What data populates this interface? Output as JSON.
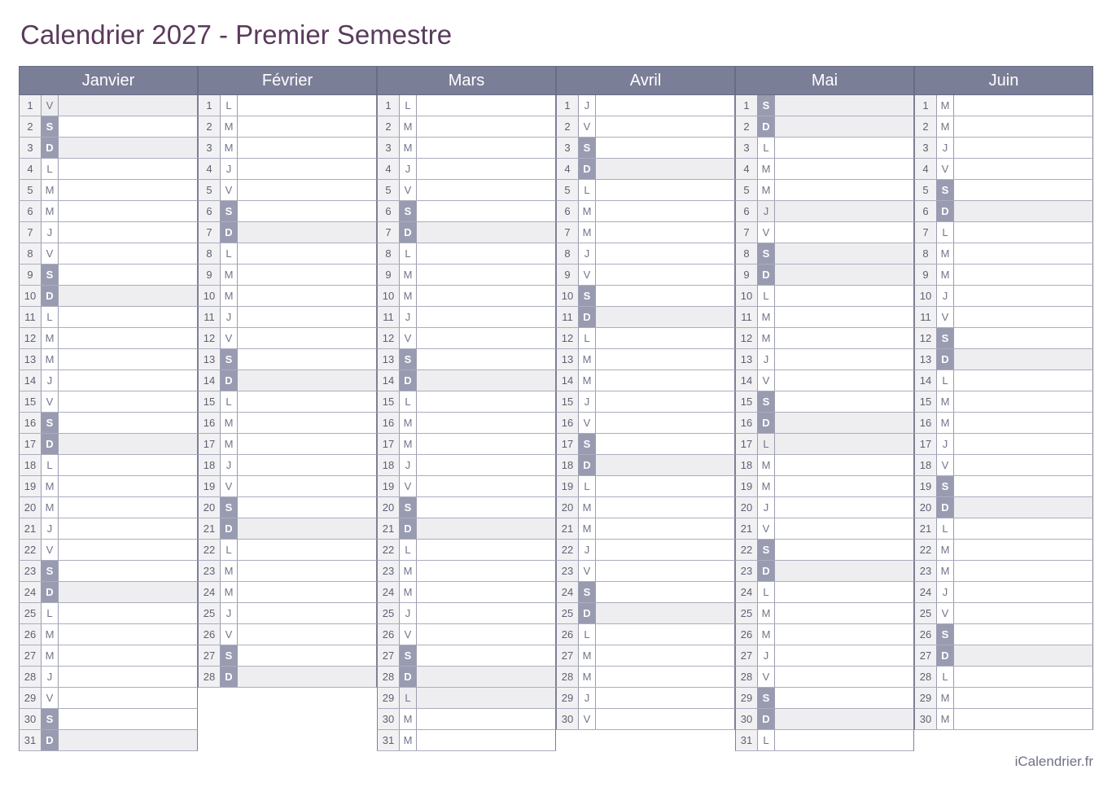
{
  "title": "Calendrier 2027 - Premier Semestre",
  "footer": "iCalendrier.fr",
  "colors": {
    "title": "#5a3a5c",
    "header_bg": "#7b7e97",
    "header_text": "#ffffff",
    "header_border": "#686b84",
    "weekend_bg": "#999bb1",
    "weekend_text": "#ffffff",
    "daynum_bg": "#f1f1f3",
    "daynum_text": "#5e6073",
    "letter_text": "#72748b",
    "shaded_bg": "#eeeef1",
    "row_border": "#abadbe",
    "inner_border": "#9b9db0",
    "column_border": "#7d7f96",
    "footer_text": "#6f7189",
    "page_bg": "#ffffff"
  },
  "months": [
    {
      "name": "Janvier",
      "days": [
        {
          "n": 1,
          "l": "V",
          "s": 1
        },
        {
          "n": 2,
          "l": "S",
          "s": 0
        },
        {
          "n": 3,
          "l": "D",
          "s": 1
        },
        {
          "n": 4,
          "l": "L",
          "s": 0
        },
        {
          "n": 5,
          "l": "M",
          "s": 0
        },
        {
          "n": 6,
          "l": "M",
          "s": 0
        },
        {
          "n": 7,
          "l": "J",
          "s": 0
        },
        {
          "n": 8,
          "l": "V",
          "s": 0
        },
        {
          "n": 9,
          "l": "S",
          "s": 0
        },
        {
          "n": 10,
          "l": "D",
          "s": 1
        },
        {
          "n": 11,
          "l": "L",
          "s": 0
        },
        {
          "n": 12,
          "l": "M",
          "s": 0
        },
        {
          "n": 13,
          "l": "M",
          "s": 0
        },
        {
          "n": 14,
          "l": "J",
          "s": 0
        },
        {
          "n": 15,
          "l": "V",
          "s": 0
        },
        {
          "n": 16,
          "l": "S",
          "s": 0
        },
        {
          "n": 17,
          "l": "D",
          "s": 1
        },
        {
          "n": 18,
          "l": "L",
          "s": 0
        },
        {
          "n": 19,
          "l": "M",
          "s": 0
        },
        {
          "n": 20,
          "l": "M",
          "s": 0
        },
        {
          "n": 21,
          "l": "J",
          "s": 0
        },
        {
          "n": 22,
          "l": "V",
          "s": 0
        },
        {
          "n": 23,
          "l": "S",
          "s": 0
        },
        {
          "n": 24,
          "l": "D",
          "s": 1
        },
        {
          "n": 25,
          "l": "L",
          "s": 0
        },
        {
          "n": 26,
          "l": "M",
          "s": 0
        },
        {
          "n": 27,
          "l": "M",
          "s": 0
        },
        {
          "n": 28,
          "l": "J",
          "s": 0
        },
        {
          "n": 29,
          "l": "V",
          "s": 0
        },
        {
          "n": 30,
          "l": "S",
          "s": 0
        },
        {
          "n": 31,
          "l": "D",
          "s": 1
        }
      ]
    },
    {
      "name": "Février",
      "days": [
        {
          "n": 1,
          "l": "L",
          "s": 0
        },
        {
          "n": 2,
          "l": "M",
          "s": 0
        },
        {
          "n": 3,
          "l": "M",
          "s": 0
        },
        {
          "n": 4,
          "l": "J",
          "s": 0
        },
        {
          "n": 5,
          "l": "V",
          "s": 0
        },
        {
          "n": 6,
          "l": "S",
          "s": 0
        },
        {
          "n": 7,
          "l": "D",
          "s": 1
        },
        {
          "n": 8,
          "l": "L",
          "s": 0
        },
        {
          "n": 9,
          "l": "M",
          "s": 0
        },
        {
          "n": 10,
          "l": "M",
          "s": 0
        },
        {
          "n": 11,
          "l": "J",
          "s": 0
        },
        {
          "n": 12,
          "l": "V",
          "s": 0
        },
        {
          "n": 13,
          "l": "S",
          "s": 0
        },
        {
          "n": 14,
          "l": "D",
          "s": 1
        },
        {
          "n": 15,
          "l": "L",
          "s": 0
        },
        {
          "n": 16,
          "l": "M",
          "s": 0
        },
        {
          "n": 17,
          "l": "M",
          "s": 0
        },
        {
          "n": 18,
          "l": "J",
          "s": 0
        },
        {
          "n": 19,
          "l": "V",
          "s": 0
        },
        {
          "n": 20,
          "l": "S",
          "s": 0
        },
        {
          "n": 21,
          "l": "D",
          "s": 1
        },
        {
          "n": 22,
          "l": "L",
          "s": 0
        },
        {
          "n": 23,
          "l": "M",
          "s": 0
        },
        {
          "n": 24,
          "l": "M",
          "s": 0
        },
        {
          "n": 25,
          "l": "J",
          "s": 0
        },
        {
          "n": 26,
          "l": "V",
          "s": 0
        },
        {
          "n": 27,
          "l": "S",
          "s": 0
        },
        {
          "n": 28,
          "l": "D",
          "s": 1
        }
      ]
    },
    {
      "name": "Mars",
      "days": [
        {
          "n": 1,
          "l": "L",
          "s": 0
        },
        {
          "n": 2,
          "l": "M",
          "s": 0
        },
        {
          "n": 3,
          "l": "M",
          "s": 0
        },
        {
          "n": 4,
          "l": "J",
          "s": 0
        },
        {
          "n": 5,
          "l": "V",
          "s": 0
        },
        {
          "n": 6,
          "l": "S",
          "s": 0
        },
        {
          "n": 7,
          "l": "D",
          "s": 1
        },
        {
          "n": 8,
          "l": "L",
          "s": 0
        },
        {
          "n": 9,
          "l": "M",
          "s": 0
        },
        {
          "n": 10,
          "l": "M",
          "s": 0
        },
        {
          "n": 11,
          "l": "J",
          "s": 0
        },
        {
          "n": 12,
          "l": "V",
          "s": 0
        },
        {
          "n": 13,
          "l": "S",
          "s": 0
        },
        {
          "n": 14,
          "l": "D",
          "s": 1
        },
        {
          "n": 15,
          "l": "L",
          "s": 0
        },
        {
          "n": 16,
          "l": "M",
          "s": 0
        },
        {
          "n": 17,
          "l": "M",
          "s": 0
        },
        {
          "n": 18,
          "l": "J",
          "s": 0
        },
        {
          "n": 19,
          "l": "V",
          "s": 0
        },
        {
          "n": 20,
          "l": "S",
          "s": 0
        },
        {
          "n": 21,
          "l": "D",
          "s": 1
        },
        {
          "n": 22,
          "l": "L",
          "s": 0
        },
        {
          "n": 23,
          "l": "M",
          "s": 0
        },
        {
          "n": 24,
          "l": "M",
          "s": 0
        },
        {
          "n": 25,
          "l": "J",
          "s": 0
        },
        {
          "n": 26,
          "l": "V",
          "s": 0
        },
        {
          "n": 27,
          "l": "S",
          "s": 0
        },
        {
          "n": 28,
          "l": "D",
          "s": 1
        },
        {
          "n": 29,
          "l": "L",
          "s": 1
        },
        {
          "n": 30,
          "l": "M",
          "s": 0
        },
        {
          "n": 31,
          "l": "M",
          "s": 0
        }
      ]
    },
    {
      "name": "Avril",
      "days": [
        {
          "n": 1,
          "l": "J",
          "s": 0
        },
        {
          "n": 2,
          "l": "V",
          "s": 0
        },
        {
          "n": 3,
          "l": "S",
          "s": 0
        },
        {
          "n": 4,
          "l": "D",
          "s": 1
        },
        {
          "n": 5,
          "l": "L",
          "s": 0
        },
        {
          "n": 6,
          "l": "M",
          "s": 0
        },
        {
          "n": 7,
          "l": "M",
          "s": 0
        },
        {
          "n": 8,
          "l": "J",
          "s": 0
        },
        {
          "n": 9,
          "l": "V",
          "s": 0
        },
        {
          "n": 10,
          "l": "S",
          "s": 0
        },
        {
          "n": 11,
          "l": "D",
          "s": 1
        },
        {
          "n": 12,
          "l": "L",
          "s": 0
        },
        {
          "n": 13,
          "l": "M",
          "s": 0
        },
        {
          "n": 14,
          "l": "M",
          "s": 0
        },
        {
          "n": 15,
          "l": "J",
          "s": 0
        },
        {
          "n": 16,
          "l": "V",
          "s": 0
        },
        {
          "n": 17,
          "l": "S",
          "s": 0
        },
        {
          "n": 18,
          "l": "D",
          "s": 1
        },
        {
          "n": 19,
          "l": "L",
          "s": 0
        },
        {
          "n": 20,
          "l": "M",
          "s": 0
        },
        {
          "n": 21,
          "l": "M",
          "s": 0
        },
        {
          "n": 22,
          "l": "J",
          "s": 0
        },
        {
          "n": 23,
          "l": "V",
          "s": 0
        },
        {
          "n": 24,
          "l": "S",
          "s": 0
        },
        {
          "n": 25,
          "l": "D",
          "s": 1
        },
        {
          "n": 26,
          "l": "L",
          "s": 0
        },
        {
          "n": 27,
          "l": "M",
          "s": 0
        },
        {
          "n": 28,
          "l": "M",
          "s": 0
        },
        {
          "n": 29,
          "l": "J",
          "s": 0
        },
        {
          "n": 30,
          "l": "V",
          "s": 0
        }
      ]
    },
    {
      "name": "Mai",
      "days": [
        {
          "n": 1,
          "l": "S",
          "s": 1
        },
        {
          "n": 2,
          "l": "D",
          "s": 1
        },
        {
          "n": 3,
          "l": "L",
          "s": 0
        },
        {
          "n": 4,
          "l": "M",
          "s": 0
        },
        {
          "n": 5,
          "l": "M",
          "s": 0
        },
        {
          "n": 6,
          "l": "J",
          "s": 1
        },
        {
          "n": 7,
          "l": "V",
          "s": 0
        },
        {
          "n": 8,
          "l": "S",
          "s": 1
        },
        {
          "n": 9,
          "l": "D",
          "s": 1
        },
        {
          "n": 10,
          "l": "L",
          "s": 0
        },
        {
          "n": 11,
          "l": "M",
          "s": 0
        },
        {
          "n": 12,
          "l": "M",
          "s": 0
        },
        {
          "n": 13,
          "l": "J",
          "s": 0
        },
        {
          "n": 14,
          "l": "V",
          "s": 0
        },
        {
          "n": 15,
          "l": "S",
          "s": 0
        },
        {
          "n": 16,
          "l": "D",
          "s": 1
        },
        {
          "n": 17,
          "l": "L",
          "s": 1
        },
        {
          "n": 18,
          "l": "M",
          "s": 0
        },
        {
          "n": 19,
          "l": "M",
          "s": 0
        },
        {
          "n": 20,
          "l": "J",
          "s": 0
        },
        {
          "n": 21,
          "l": "V",
          "s": 0
        },
        {
          "n": 22,
          "l": "S",
          "s": 0
        },
        {
          "n": 23,
          "l": "D",
          "s": 1
        },
        {
          "n": 24,
          "l": "L",
          "s": 0
        },
        {
          "n": 25,
          "l": "M",
          "s": 0
        },
        {
          "n": 26,
          "l": "M",
          "s": 0
        },
        {
          "n": 27,
          "l": "J",
          "s": 0
        },
        {
          "n": 28,
          "l": "V",
          "s": 0
        },
        {
          "n": 29,
          "l": "S",
          "s": 0
        },
        {
          "n": 30,
          "l": "D",
          "s": 1
        },
        {
          "n": 31,
          "l": "L",
          "s": 0
        }
      ]
    },
    {
      "name": "Juin",
      "days": [
        {
          "n": 1,
          "l": "M",
          "s": 0
        },
        {
          "n": 2,
          "l": "M",
          "s": 0
        },
        {
          "n": 3,
          "l": "J",
          "s": 0
        },
        {
          "n": 4,
          "l": "V",
          "s": 0
        },
        {
          "n": 5,
          "l": "S",
          "s": 0
        },
        {
          "n": 6,
          "l": "D",
          "s": 1
        },
        {
          "n": 7,
          "l": "L",
          "s": 0
        },
        {
          "n": 8,
          "l": "M",
          "s": 0
        },
        {
          "n": 9,
          "l": "M",
          "s": 0
        },
        {
          "n": 10,
          "l": "J",
          "s": 0
        },
        {
          "n": 11,
          "l": "V",
          "s": 0
        },
        {
          "n": 12,
          "l": "S",
          "s": 0
        },
        {
          "n": 13,
          "l": "D",
          "s": 1
        },
        {
          "n": 14,
          "l": "L",
          "s": 0
        },
        {
          "n": 15,
          "l": "M",
          "s": 0
        },
        {
          "n": 16,
          "l": "M",
          "s": 0
        },
        {
          "n": 17,
          "l": "J",
          "s": 0
        },
        {
          "n": 18,
          "l": "V",
          "s": 0
        },
        {
          "n": 19,
          "l": "S",
          "s": 0
        },
        {
          "n": 20,
          "l": "D",
          "s": 1
        },
        {
          "n": 21,
          "l": "L",
          "s": 0
        },
        {
          "n": 22,
          "l": "M",
          "s": 0
        },
        {
          "n": 23,
          "l": "M",
          "s": 0
        },
        {
          "n": 24,
          "l": "J",
          "s": 0
        },
        {
          "n": 25,
          "l": "V",
          "s": 0
        },
        {
          "n": 26,
          "l": "S",
          "s": 0
        },
        {
          "n": 27,
          "l": "D",
          "s": 1
        },
        {
          "n": 28,
          "l": "L",
          "s": 0
        },
        {
          "n": 29,
          "l": "M",
          "s": 0
        },
        {
          "n": 30,
          "l": "M",
          "s": 0
        }
      ]
    }
  ]
}
